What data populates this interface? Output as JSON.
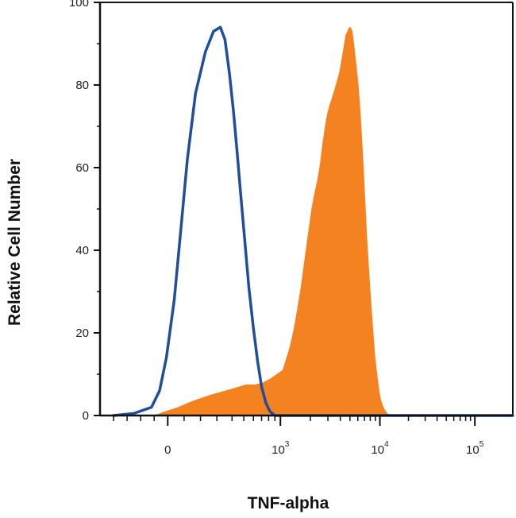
{
  "chart_data": {
    "type": "area",
    "xlabel": "TNF-alpha",
    "ylabel": "Relative Cell Number",
    "x_scale": "biexponential",
    "xlim": [
      -500,
      150000
    ],
    "ylim": [
      0,
      100
    ],
    "grid": false,
    "legend": "none",
    "y_ticks": [
      "0",
      "20",
      "40",
      "60",
      "80",
      "100"
    ],
    "y_tick_values": [
      0,
      20,
      40,
      60,
      80,
      100
    ],
    "x_ticks": [
      {
        "base": "0",
        "exp": "",
        "value": 0
      },
      {
        "base": "10",
        "exp": "3",
        "value": 1000
      },
      {
        "base": "10",
        "exp": "4",
        "value": 10000
      },
      {
        "base": "10",
        "exp": "5",
        "value": 100000
      }
    ],
    "series": [
      {
        "style": "line",
        "color": "#1f4f9a",
        "points": [
          [
            -400,
            0
          ],
          [
            -250,
            0.5
          ],
          [
            -120,
            2
          ],
          [
            -60,
            6
          ],
          [
            -10,
            14
          ],
          [
            40,
            28
          ],
          [
            80,
            45
          ],
          [
            120,
            62
          ],
          [
            170,
            78
          ],
          [
            230,
            88
          ],
          [
            280,
            93
          ],
          [
            320,
            94
          ],
          [
            350,
            91
          ],
          [
            380,
            83
          ],
          [
            410,
            74
          ],
          [
            440,
            64
          ],
          [
            470,
            54
          ],
          [
            510,
            42
          ],
          [
            550,
            31
          ],
          [
            600,
            21
          ],
          [
            650,
            13
          ],
          [
            700,
            7
          ],
          [
            760,
            3
          ],
          [
            820,
            1
          ],
          [
            900,
            0
          ],
          [
            1500,
            0
          ],
          [
            150000,
            0
          ]
        ]
      },
      {
        "style": "filled",
        "color": "#f58220",
        "points": [
          [
            -400,
            0
          ],
          [
            -100,
            0
          ],
          [
            -20,
            1
          ],
          [
            60,
            2
          ],
          [
            150,
            3.5
          ],
          [
            260,
            5
          ],
          [
            400,
            6.5
          ],
          [
            520,
            7.5
          ],
          [
            620,
            7.5
          ],
          [
            720,
            8
          ],
          [
            830,
            9
          ],
          [
            930,
            10
          ],
          [
            1050,
            11
          ],
          [
            1150,
            14
          ],
          [
            1250,
            17
          ],
          [
            1360,
            21
          ],
          [
            1480,
            26
          ],
          [
            1600,
            31
          ],
          [
            1750,
            38
          ],
          [
            1920,
            45
          ],
          [
            2050,
            50
          ],
          [
            2200,
            54
          ],
          [
            2350,
            57
          ],
          [
            2500,
            61
          ],
          [
            2650,
            66
          ],
          [
            2800,
            70
          ],
          [
            2950,
            73
          ],
          [
            3100,
            75
          ],
          [
            3300,
            77
          ],
          [
            3500,
            79
          ],
          [
            3700,
            81
          ],
          [
            3900,
            83
          ],
          [
            4100,
            86
          ],
          [
            4300,
            89
          ],
          [
            4500,
            92
          ],
          [
            4700,
            93
          ],
          [
            4900,
            94
          ],
          [
            5100,
            94
          ],
          [
            5300,
            93
          ],
          [
            5500,
            90
          ],
          [
            5800,
            85
          ],
          [
            6100,
            80
          ],
          [
            6400,
            73
          ],
          [
            6800,
            62
          ],
          [
            7100,
            53
          ],
          [
            7400,
            44
          ],
          [
            7800,
            35
          ],
          [
            8200,
            27
          ],
          [
            8600,
            20
          ],
          [
            9000,
            14
          ],
          [
            9500,
            9
          ],
          [
            10000,
            5
          ],
          [
            10500,
            3
          ],
          [
            11200,
            1.5
          ],
          [
            12000,
            0.5
          ],
          [
            13500,
            0
          ],
          [
            150000,
            0
          ]
        ]
      }
    ]
  }
}
